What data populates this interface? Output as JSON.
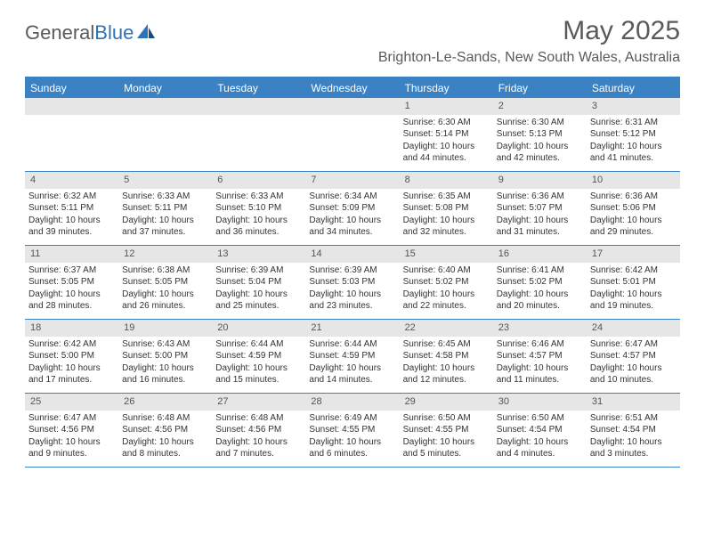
{
  "logo": {
    "part1": "General",
    "part2": "Blue"
  },
  "title": "May 2025",
  "location": "Brighton-Le-Sands, New South Wales, Australia",
  "colors": {
    "header_bar": "#3b82c4",
    "day_num_bg": "#e6e6e6",
    "text": "#333333",
    "title_text": "#5a5a5a"
  },
  "weekdays": [
    "Sunday",
    "Monday",
    "Tuesday",
    "Wednesday",
    "Thursday",
    "Friday",
    "Saturday"
  ],
  "weeks": [
    [
      null,
      null,
      null,
      null,
      {
        "n": "1",
        "sr": "6:30 AM",
        "ss": "5:14 PM",
        "dl": "10 hours and 44 minutes."
      },
      {
        "n": "2",
        "sr": "6:30 AM",
        "ss": "5:13 PM",
        "dl": "10 hours and 42 minutes."
      },
      {
        "n": "3",
        "sr": "6:31 AM",
        "ss": "5:12 PM",
        "dl": "10 hours and 41 minutes."
      }
    ],
    [
      {
        "n": "4",
        "sr": "6:32 AM",
        "ss": "5:11 PM",
        "dl": "10 hours and 39 minutes."
      },
      {
        "n": "5",
        "sr": "6:33 AM",
        "ss": "5:11 PM",
        "dl": "10 hours and 37 minutes."
      },
      {
        "n": "6",
        "sr": "6:33 AM",
        "ss": "5:10 PM",
        "dl": "10 hours and 36 minutes."
      },
      {
        "n": "7",
        "sr": "6:34 AM",
        "ss": "5:09 PM",
        "dl": "10 hours and 34 minutes."
      },
      {
        "n": "8",
        "sr": "6:35 AM",
        "ss": "5:08 PM",
        "dl": "10 hours and 32 minutes."
      },
      {
        "n": "9",
        "sr": "6:36 AM",
        "ss": "5:07 PM",
        "dl": "10 hours and 31 minutes."
      },
      {
        "n": "10",
        "sr": "6:36 AM",
        "ss": "5:06 PM",
        "dl": "10 hours and 29 minutes."
      }
    ],
    [
      {
        "n": "11",
        "sr": "6:37 AM",
        "ss": "5:05 PM",
        "dl": "10 hours and 28 minutes."
      },
      {
        "n": "12",
        "sr": "6:38 AM",
        "ss": "5:05 PM",
        "dl": "10 hours and 26 minutes."
      },
      {
        "n": "13",
        "sr": "6:39 AM",
        "ss": "5:04 PM",
        "dl": "10 hours and 25 minutes."
      },
      {
        "n": "14",
        "sr": "6:39 AM",
        "ss": "5:03 PM",
        "dl": "10 hours and 23 minutes."
      },
      {
        "n": "15",
        "sr": "6:40 AM",
        "ss": "5:02 PM",
        "dl": "10 hours and 22 minutes."
      },
      {
        "n": "16",
        "sr": "6:41 AM",
        "ss": "5:02 PM",
        "dl": "10 hours and 20 minutes."
      },
      {
        "n": "17",
        "sr": "6:42 AM",
        "ss": "5:01 PM",
        "dl": "10 hours and 19 minutes."
      }
    ],
    [
      {
        "n": "18",
        "sr": "6:42 AM",
        "ss": "5:00 PM",
        "dl": "10 hours and 17 minutes."
      },
      {
        "n": "19",
        "sr": "6:43 AM",
        "ss": "5:00 PM",
        "dl": "10 hours and 16 minutes."
      },
      {
        "n": "20",
        "sr": "6:44 AM",
        "ss": "4:59 PM",
        "dl": "10 hours and 15 minutes."
      },
      {
        "n": "21",
        "sr": "6:44 AM",
        "ss": "4:59 PM",
        "dl": "10 hours and 14 minutes."
      },
      {
        "n": "22",
        "sr": "6:45 AM",
        "ss": "4:58 PM",
        "dl": "10 hours and 12 minutes."
      },
      {
        "n": "23",
        "sr": "6:46 AM",
        "ss": "4:57 PM",
        "dl": "10 hours and 11 minutes."
      },
      {
        "n": "24",
        "sr": "6:47 AM",
        "ss": "4:57 PM",
        "dl": "10 hours and 10 minutes."
      }
    ],
    [
      {
        "n": "25",
        "sr": "6:47 AM",
        "ss": "4:56 PM",
        "dl": "10 hours and 9 minutes."
      },
      {
        "n": "26",
        "sr": "6:48 AM",
        "ss": "4:56 PM",
        "dl": "10 hours and 8 minutes."
      },
      {
        "n": "27",
        "sr": "6:48 AM",
        "ss": "4:56 PM",
        "dl": "10 hours and 7 minutes."
      },
      {
        "n": "28",
        "sr": "6:49 AM",
        "ss": "4:55 PM",
        "dl": "10 hours and 6 minutes."
      },
      {
        "n": "29",
        "sr": "6:50 AM",
        "ss": "4:55 PM",
        "dl": "10 hours and 5 minutes."
      },
      {
        "n": "30",
        "sr": "6:50 AM",
        "ss": "4:54 PM",
        "dl": "10 hours and 4 minutes."
      },
      {
        "n": "31",
        "sr": "6:51 AM",
        "ss": "4:54 PM",
        "dl": "10 hours and 3 minutes."
      }
    ]
  ],
  "labels": {
    "sunrise": "Sunrise: ",
    "sunset": "Sunset: ",
    "daylight": "Daylight: "
  }
}
